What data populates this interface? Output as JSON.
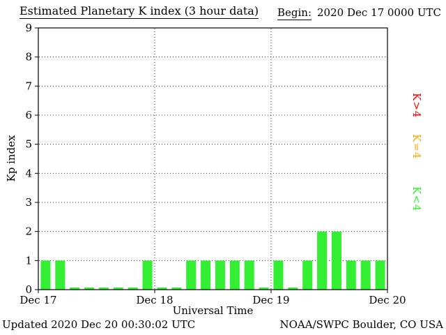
{
  "title": "Estimated Planetary K index (3 hour data)",
  "begin_label": "Begin:",
  "begin_value": "2020 Dec 17 0000 UTC",
  "footer": {
    "updated": "Updated 2020 Dec 20 00:30:02 UTC",
    "source": "NOAA/SWPC Boulder, CO USA"
  },
  "legend": [
    {
      "label": "K>4",
      "color": "#ff0000"
    },
    {
      "label": "K=4",
      "color": "#ffaa00"
    },
    {
      "label": "K<4",
      "color": "#33ee33"
    }
  ],
  "chart_data": {
    "type": "bar",
    "title": "Estimated Planetary K index (3 hour data)",
    "xlabel": "Universal Time",
    "ylabel": "Kp index",
    "ylim": [
      0,
      9
    ],
    "yticks": [
      0,
      1,
      2,
      3,
      4,
      5,
      6,
      7,
      8,
      9
    ],
    "xticks": [
      "Dec 17",
      "Dec 18",
      "Dec 19",
      "Dec 20"
    ],
    "begin": "2020 Dec 17 0000 UTC",
    "interval_hours": 3,
    "values": [
      1,
      1,
      0,
      0,
      0,
      0,
      0,
      1,
      0,
      0,
      1,
      1,
      1,
      1,
      1,
      0,
      1,
      0,
      1,
      2,
      2,
      1,
      1,
      1
    ],
    "bar_colors": {
      "lt4": "#33ee33",
      "eq4": "#ffaa00",
      "gt4": "#ff0000"
    },
    "grid": {
      "horizontal_dotted_at": [
        1,
        2,
        3,
        4,
        5,
        6,
        7,
        8
      ],
      "vertical_dotted_at_days": [
        1,
        2
      ]
    },
    "legend_position": "right"
  }
}
